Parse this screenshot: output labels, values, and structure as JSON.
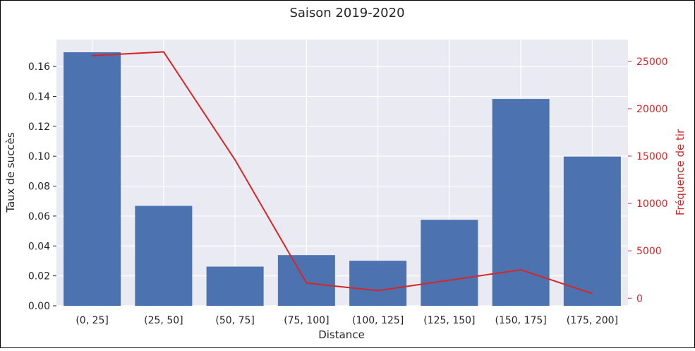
{
  "chart_data": {
    "type": "bar",
    "title": "Saison 2019-2020",
    "xlabel": "Distance",
    "ylabel": "Taux de succès",
    "y2label": "Fréquence de tir",
    "categories": [
      "(0, 25]",
      "(25, 50]",
      "(50, 75]",
      "(75, 100]",
      "(100, 125]",
      "(125, 150]",
      "(150, 175]",
      "(175, 200]"
    ],
    "series": [
      {
        "type": "bar",
        "axis": "left",
        "values": [
          0.1695,
          0.0668,
          0.0262,
          0.0339,
          0.0301,
          0.0575,
          0.1383,
          0.0998
        ]
      },
      {
        "type": "line",
        "axis": "right",
        "values": [
          25600,
          26000,
          14600,
          1600,
          800,
          1900,
          3000,
          500
        ]
      }
    ],
    "ylim": [
      0,
      0.178
    ],
    "y2lim": [
      -800,
      27300
    ],
    "yticks": [
      0.0,
      0.02,
      0.04,
      0.06,
      0.08,
      0.1,
      0.12,
      0.14,
      0.16
    ],
    "ytick_labels": [
      "0.00",
      "0.02",
      "0.04",
      "0.06",
      "0.08",
      "0.10",
      "0.12",
      "0.14",
      "0.16"
    ],
    "y2ticks": [
      0,
      5000,
      10000,
      15000,
      20000,
      25000
    ],
    "y2tick_labels": [
      "0",
      "5000",
      "10000",
      "15000",
      "20000",
      "25000"
    ],
    "grid": true,
    "colors": {
      "bar": "#4c72b0",
      "line": "#d62728",
      "background": "#eaeaf2",
      "grid": "#ffffff",
      "y2_text": "#d62728"
    }
  }
}
